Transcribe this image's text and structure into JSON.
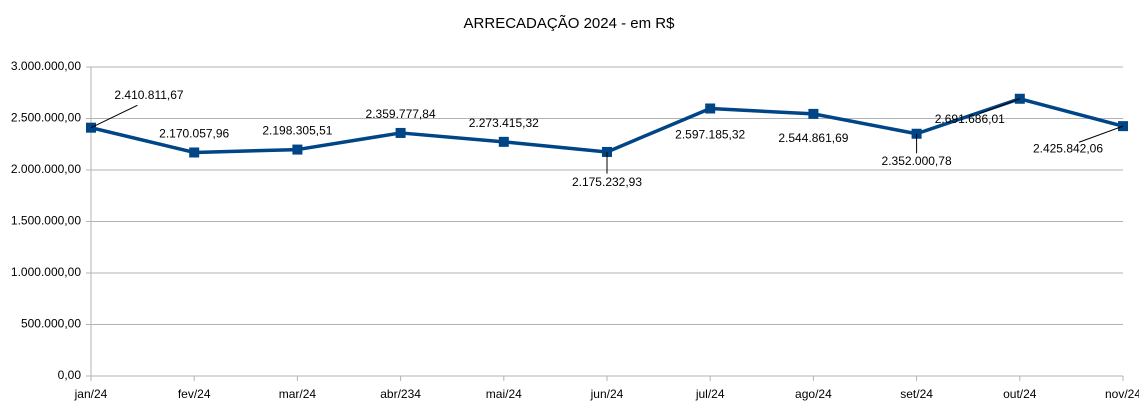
{
  "chart_data": {
    "type": "line",
    "title": "ARRECADAÇÃO 2024 - em R$",
    "categories": [
      "jan/24",
      "fev/24",
      "mar/24",
      "abr/234",
      "mai/24",
      "jun/24",
      "jul/24",
      "ago/24",
      "set/24",
      "out/24",
      "nov/24"
    ],
    "series": [
      {
        "name": "ARRECADAÇÃO",
        "color": "#004586",
        "values": [
          2410811.67,
          2170057.96,
          2198305.51,
          2359777.84,
          2273415.32,
          2175232.93,
          2597185.32,
          2544861.69,
          2352000.78,
          2691686.01,
          2425842.06
        ],
        "value_labels": [
          "2.410.811,67",
          "2.170.057,96",
          "2.198.305,51",
          "2.359.777,84",
          "2.273.415,32",
          "2.175.232,93",
          "2.597.185,32",
          "2.544.861,69",
          "2.352.000,78",
          "2.691.686,01",
          "2.425.842,06"
        ]
      }
    ],
    "ylim": [
      0,
      3000000
    ],
    "yticks": [
      {
        "value": 0,
        "label": "0,00"
      },
      {
        "value": 500000,
        "label": "500.000,00"
      },
      {
        "value": 1000000,
        "label": "1.000.000,00"
      },
      {
        "value": 1500000,
        "label": "1.500.000,00"
      },
      {
        "value": 2000000,
        "label": "2.000.000,00"
      },
      {
        "value": 2500000,
        "label": "2.500.000,00"
      },
      {
        "value": 3000000,
        "label": "3.000.000,00"
      }
    ],
    "grid": true
  }
}
